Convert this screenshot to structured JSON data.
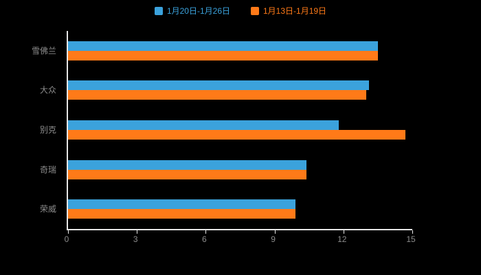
{
  "chart_data": {
    "type": "bar",
    "orientation": "horizontal",
    "title": "",
    "categories": [
      "雪佛兰",
      "大众",
      "别克",
      "奇瑞",
      "荣威"
    ],
    "series": [
      {
        "name": "1月20日-1月26日",
        "color": "#3BA2DC",
        "values": [
          13.5,
          13.1,
          11.8,
          10.4,
          9.9
        ]
      },
      {
        "name": "1月13日-1月19日",
        "color": "#FF7A18",
        "values": [
          13.5,
          13.0,
          14.7,
          10.4,
          9.9
        ]
      }
    ],
    "xlabel": "",
    "ylabel": "",
    "xlim": [
      0,
      15
    ],
    "xticks": [
      0,
      3,
      6,
      9,
      12,
      15
    ],
    "grid": false,
    "legend_position": "top",
    "colors": {
      "background": "#000000",
      "axis_line": "#E6E6E6",
      "tick_label": "#8C8C8C",
      "category_label": "#8C8C8C"
    }
  }
}
